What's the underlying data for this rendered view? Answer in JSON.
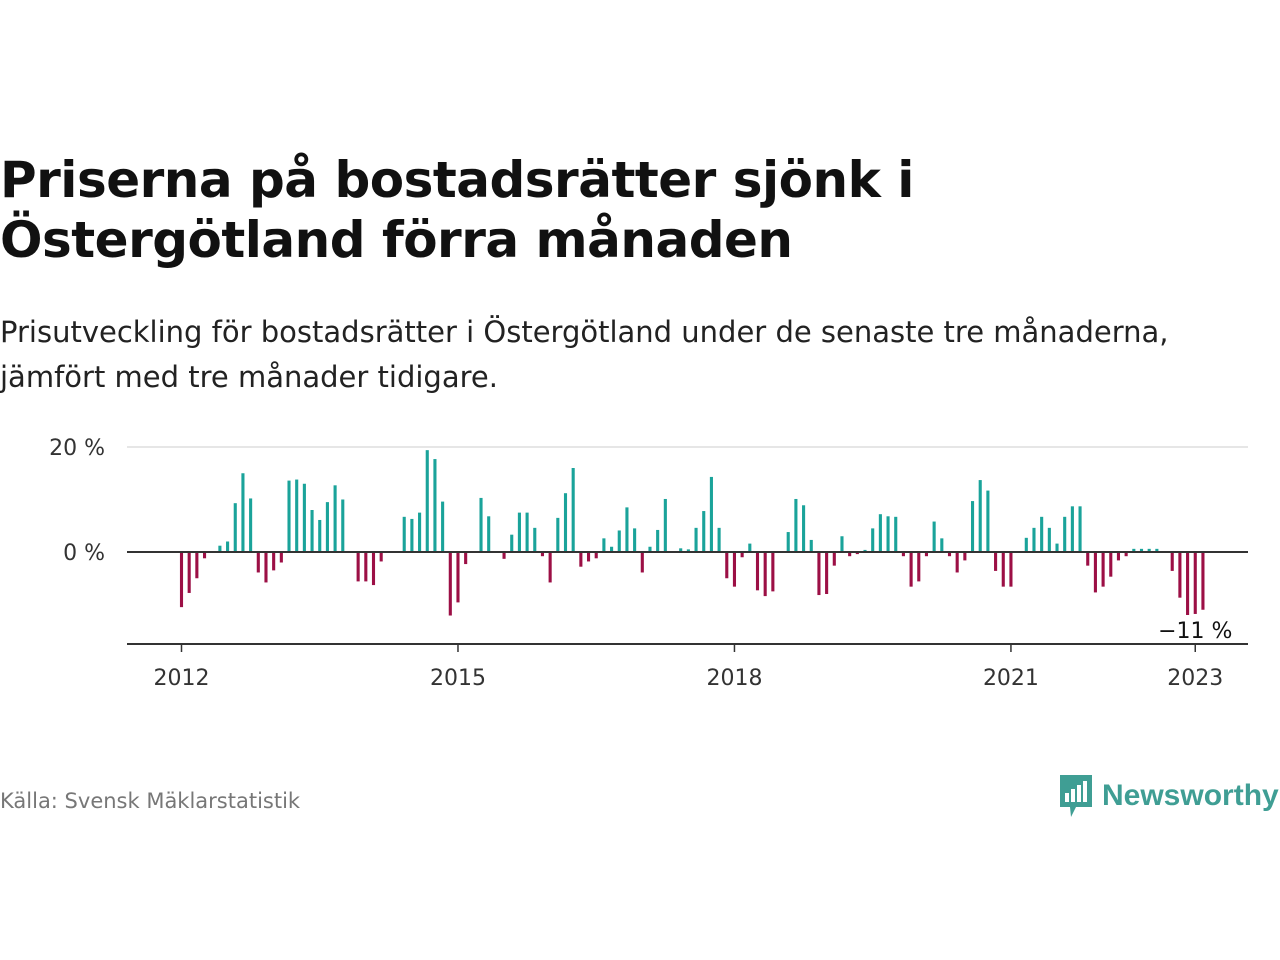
{
  "title": "Priserna på bostadsrätter sjönk i Östergötland förra månaden",
  "subtitle": "Prisutveckling för bostadsrätter i Östergötland under de senaste tre månaderna, jämfört med tre månader tidigare.",
  "source": "Källa: Svensk Mäklarstatistik",
  "brand": {
    "name": "Newsworthy",
    "icon": "newsworthy-logo-icon"
  },
  "colors": {
    "positive": "#1aa39a",
    "negative": "#9c0f45",
    "axis": "#333333",
    "grid": "#dddddd",
    "brand": "#3f9e94"
  },
  "chart_data": {
    "type": "bar",
    "title": "",
    "xlabel": "",
    "ylabel": "",
    "start": "2012-01",
    "frequency": "monthly",
    "ylim": [
      -17,
      20
    ],
    "yticks": [
      {
        "value": 0,
        "label": "0 %"
      },
      {
        "value": 20,
        "label": "20 %"
      }
    ],
    "xticks": [
      {
        "value": "2012-01",
        "label": "2012"
      },
      {
        "value": "2015-01",
        "label": "2015"
      },
      {
        "value": "2018-01",
        "label": "2018"
      },
      {
        "value": "2021-01",
        "label": "2021"
      },
      {
        "value": "2023-01",
        "label": "2023"
      }
    ],
    "grid": true,
    "annotation": {
      "value": "2023-01",
      "label": "−11 %"
    },
    "values": [
      -10.5,
      -7.8,
      -5,
      -1.2,
      0,
      1.2,
      2,
      9.3,
      15,
      10.2,
      -3.9,
      -5.8,
      -3.5,
      -2,
      13.6,
      13.8,
      13,
      8,
      6.1,
      9.5,
      12.7,
      10,
      0,
      -5.6,
      -5.6,
      -6.3,
      -1.8,
      0,
      0,
      6.7,
      6.3,
      7.5,
      19.4,
      17.7,
      9.6,
      -12.1,
      -9.6,
      -2.3,
      0,
      10.3,
      6.8,
      0,
      -1.3,
      3.3,
      7.5,
      7.5,
      4.6,
      -0.8,
      -5.8,
      6.5,
      11.2,
      16,
      -2.8,
      -1.8,
      -1.2,
      2.6,
      1,
      4.1,
      8.5,
      4.5,
      -3.9,
      1,
      4.2,
      10.1,
      0,
      0.7,
      0.5,
      4.6,
      7.8,
      14.3,
      4.6,
      -5,
      -6.6,
      -1,
      1.6,
      -7.3,
      -8.4,
      -7.5,
      0,
      3.8,
      10.1,
      8.9,
      2.3,
      -8.2,
      -8,
      -2.6,
      3,
      -0.8,
      -0.4,
      0.4,
      4.5,
      7.2,
      6.8,
      6.7,
      -0.8,
      -6.6,
      -5.6,
      -0.8,
      5.8,
      2.6,
      -0.8,
      -3.9,
      -1.6,
      9.7,
      13.7,
      11.7,
      -3.6,
      -6.6,
      -6.6,
      0,
      2.7,
      4.6,
      6.7,
      4.6,
      1.6,
      6.7,
      8.7,
      8.7,
      -2.6,
      -7.7,
      -6.6,
      -4.7,
      -1.6,
      -0.8,
      0.6,
      0.6,
      0.6,
      0.6,
      0,
      -3.6,
      -8.7,
      -12,
      -11.8,
      -11
    ]
  }
}
